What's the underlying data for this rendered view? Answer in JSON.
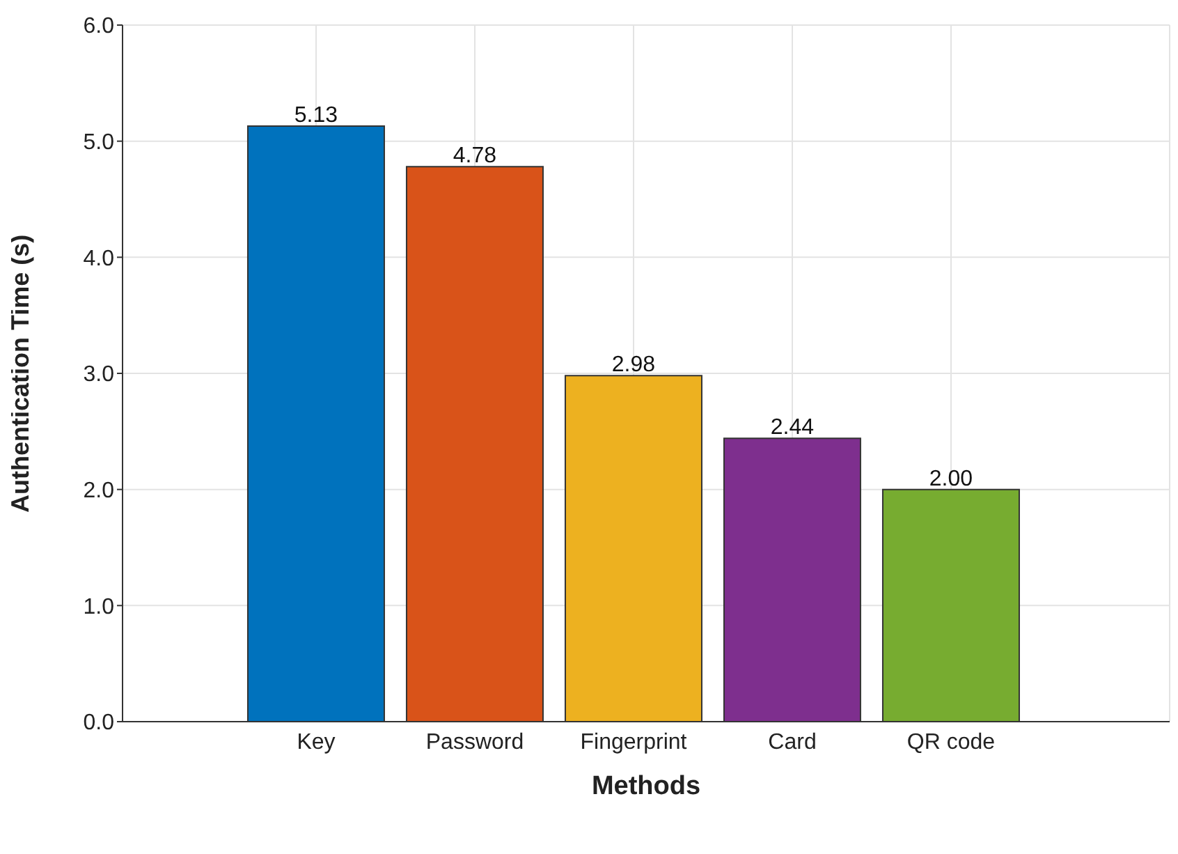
{
  "chart_data": {
    "type": "bar",
    "xlabel": "Methods",
    "ylabel": "Authentication Time (s)",
    "categories": [
      "Key",
      "Password",
      "Fingerprint",
      "Card",
      "QR code"
    ],
    "values": [
      5.13,
      4.78,
      2.98,
      2.44,
      2.0
    ],
    "value_labels": [
      "5.13",
      "4.78",
      "2.98",
      "2.44",
      "2.00"
    ],
    "colors": [
      "#0072bd",
      "#d95319",
      "#edb120",
      "#7e2f8e",
      "#77ac30"
    ],
    "ylim": [
      0,
      6
    ],
    "yticks": [
      {
        "value": 0,
        "label": "0.0"
      },
      {
        "value": 1,
        "label": "1.0"
      },
      {
        "value": 2,
        "label": "2.0"
      },
      {
        "value": 3,
        "label": "3.0"
      },
      {
        "value": 4,
        "label": "4.0"
      },
      {
        "value": 5,
        "label": "5.0"
      },
      {
        "value": 6,
        "label": "6.0"
      }
    ],
    "grid": true
  }
}
